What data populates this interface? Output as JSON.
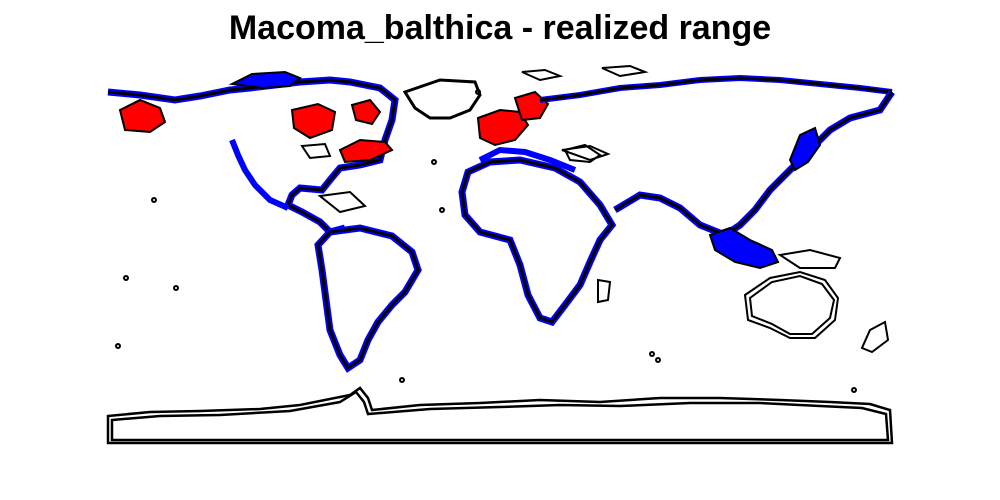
{
  "title": "Macoma_balthica - realized range",
  "colors": {
    "coastline": "#000000",
    "coastal_range": "#0000ff",
    "realized_range": "#ff0000",
    "background": "#ffffff"
  },
  "legend": {
    "coastal_range_color": "blue",
    "realized_range_color": "red"
  }
}
